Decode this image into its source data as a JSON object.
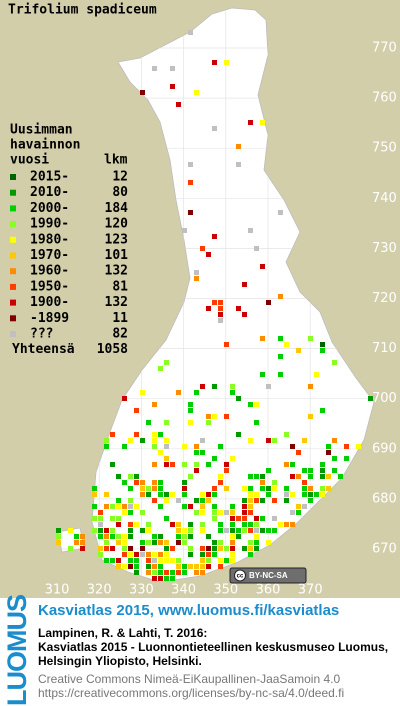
{
  "title": "Trifolium spadiceum",
  "legend": {
    "heading": [
      "Uusimman",
      "havainnon",
      "vuosi"
    ],
    "count_header": "lkm",
    "rows": [
      {
        "label": "2015-",
        "count": 12,
        "color": "#006400"
      },
      {
        "label": "2010-",
        "count": 80,
        "color": "#009a00"
      },
      {
        "label": "2000-",
        "count": 184,
        "color": "#00d000"
      },
      {
        "label": "1990-",
        "count": 120,
        "color": "#88ff22"
      },
      {
        "label": "1980-",
        "count": 123,
        "color": "#ffff00"
      },
      {
        "label": "1970-",
        "count": 101,
        "color": "#ffc800"
      },
      {
        "label": "1960-",
        "count": 132,
        "color": "#ff8c00"
      },
      {
        "label": "1950-",
        "count": 81,
        "color": "#ff3c00"
      },
      {
        "label": "1900-",
        "count": 132,
        "color": "#cc0000"
      },
      {
        "label": "-1899",
        "count": 11,
        "color": "#800000"
      },
      {
        "label": "???",
        "count": 82,
        "color": "#c0c0c0"
      }
    ],
    "total_label": "Yhteensä",
    "total": 1058
  },
  "x_axis": [
    310,
    320,
    330,
    340,
    350,
    360,
    370
  ],
  "y_axis": [
    670,
    680,
    690,
    700,
    710,
    720,
    730,
    740,
    750,
    760,
    770
  ],
  "license_badge": "BY-NC-SA",
  "footer": {
    "logo": "LUOMUS",
    "headline": "Kasviatlas 2015, www.luomus.fi/kasviatlas",
    "citation": [
      "Lampinen, R. & Lahti, T. 2016:",
      "Kasviatlas 2015 - Luonnontieteellinen keskusmuseo Luomus,",
      "Helsingin Yliopisto, Helsinki."
    ],
    "license": [
      "Creative Commons Nimeä-EiKaupallinen-JaaSamoin 4.0",
      "https://creativecommons.org/licenses/by-nc-sa/4.0/deed.fi"
    ]
  }
}
